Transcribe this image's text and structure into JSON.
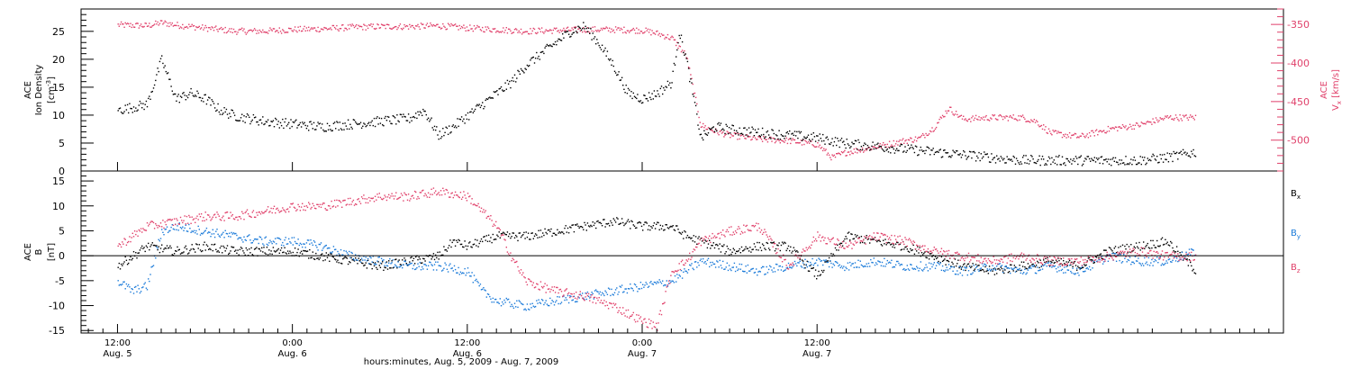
{
  "chart_data": [
    {
      "type": "scatter",
      "title": "",
      "xlabel": "hours:minutes, Aug.  5, 2009  -  Aug.  7, 2009",
      "ylabel": "ACE Ion Density [cm^-3]",
      "ylabel_parts": [
        "ACE",
        "Ion Density",
        "[cm",
        "-3",
        "]"
      ],
      "y2label": "ACE V_x [km/s]",
      "y2label_parts": [
        "ACE",
        "V",
        "x",
        "[km/s]"
      ],
      "ylim": [
        0,
        29
      ],
      "y2lim": [
        -540,
        -330
      ],
      "yticks": [
        0,
        5,
        10,
        15,
        20,
        25
      ],
      "y2ticks": [
        -350,
        -400,
        -450,
        -500
      ],
      "grid": false,
      "series": [
        {
          "axis": "left",
          "color": "#000000",
          "points": [
            [
              0,
              11
            ],
            [
              2,
              12
            ],
            [
              3,
              20
            ],
            [
              4,
              13
            ],
            [
              5,
              14
            ],
            [
              6,
              13
            ],
            [
              7,
              11
            ],
            [
              8,
              10
            ],
            [
              10,
              9
            ],
            [
              12,
              8.5
            ],
            [
              14,
              8
            ],
            [
              16,
              8.5
            ],
            [
              18,
              9
            ],
            [
              20,
              9.5
            ],
            [
              21,
              11
            ],
            [
              22,
              6.5
            ],
            [
              23,
              8
            ],
            [
              24,
              10
            ],
            [
              25,
              12
            ],
            [
              26,
              14
            ],
            [
              27,
              16
            ],
            [
              28,
              19
            ],
            [
              29,
              21
            ],
            [
              30,
              23
            ],
            [
              31,
              25
            ],
            [
              32,
              26
            ],
            [
              33,
              23
            ],
            [
              34,
              19
            ],
            [
              35,
              14
            ],
            [
              36,
              13
            ],
            [
              37,
              14
            ],
            [
              38,
              16
            ],
            [
              38.5,
              25
            ],
            [
              39,
              20
            ],
            [
              40,
              6
            ],
            [
              41,
              8
            ],
            [
              42,
              7.5
            ],
            [
              44,
              7
            ],
            [
              46,
              6.5
            ],
            [
              48,
              6
            ],
            [
              50,
              5
            ],
            [
              52,
              4.5
            ],
            [
              54,
              4
            ],
            [
              56,
              3.5
            ],
            [
              58,
              3
            ],
            [
              60,
              2.5
            ],
            [
              62,
              2
            ],
            [
              64,
              2
            ],
            [
              66,
              2
            ],
            [
              68,
              2
            ],
            [
              70,
              2
            ],
            [
              72,
              2.5
            ],
            [
              74,
              3.5
            ]
          ]
        },
        {
          "axis": "right",
          "color": "#e0406a",
          "points": [
            [
              0,
              -350
            ],
            [
              2,
              -351
            ],
            [
              3,
              -347
            ],
            [
              4,
              -350
            ],
            [
              5,
              -352
            ],
            [
              6,
              -354
            ],
            [
              8,
              -358
            ],
            [
              10,
              -358
            ],
            [
              12,
              -356
            ],
            [
              14,
              -355
            ],
            [
              16,
              -353
            ],
            [
              18,
              -352
            ],
            [
              20,
              -352
            ],
            [
              22,
              -351
            ],
            [
              24,
              -354
            ],
            [
              26,
              -356
            ],
            [
              28,
              -358
            ],
            [
              30,
              -357
            ],
            [
              32,
              -356
            ],
            [
              34,
              -356
            ],
            [
              36,
              -357
            ],
            [
              37,
              -361
            ],
            [
              38,
              -367
            ],
            [
              39,
              -390
            ],
            [
              40,
              -480
            ],
            [
              41,
              -488
            ],
            [
              42,
              -493
            ],
            [
              44,
              -498
            ],
            [
              46,
              -500
            ],
            [
              48,
              -505
            ],
            [
              49,
              -522
            ],
            [
              50,
              -515
            ],
            [
              52,
              -508
            ],
            [
              54,
              -500
            ],
            [
              55,
              -497
            ],
            [
              56,
              -483
            ],
            [
              57,
              -458
            ],
            [
              58,
              -472
            ],
            [
              60,
              -470
            ],
            [
              62,
              -470
            ],
            [
              63,
              -475
            ],
            [
              64,
              -490
            ],
            [
              66,
              -495
            ],
            [
              68,
              -485
            ],
            [
              70,
              -480
            ],
            [
              72,
              -470
            ],
            [
              74,
              -470
            ]
          ]
        }
      ],
      "legend": []
    },
    {
      "type": "scatter",
      "title": "",
      "xlabel": "hours:minutes, Aug.  5, 2009  -  Aug.  7, 2009",
      "ylabel": "ACE B [nT]",
      "ylabel_parts": [
        "ACE",
        "B",
        "[nT]"
      ],
      "ylim": [
        -15.5,
        17
      ],
      "yticks": [
        -15,
        -10,
        -5,
        0,
        5,
        10,
        15
      ],
      "zero_line": true,
      "grid": false,
      "series": [
        {
          "name": "B_x",
          "label_base": "B",
          "label_sub": "x",
          "color": "#000000",
          "points": [
            [
              0,
              -2
            ],
            [
              2,
              2
            ],
            [
              4,
              1
            ],
            [
              6,
              2
            ],
            [
              8,
              1
            ],
            [
              10,
              1
            ],
            [
              12,
              1
            ],
            [
              14,
              0
            ],
            [
              16,
              -1
            ],
            [
              18,
              -2
            ],
            [
              20,
              -1
            ],
            [
              22,
              0
            ],
            [
              23,
              3
            ],
            [
              24,
              2
            ],
            [
              26,
              4
            ],
            [
              28,
              4
            ],
            [
              30,
              5
            ],
            [
              32,
              6
            ],
            [
              34,
              7
            ],
            [
              36,
              6
            ],
            [
              38,
              6
            ],
            [
              39,
              4
            ],
            [
              40,
              3
            ],
            [
              42,
              1
            ],
            [
              44,
              2
            ],
            [
              46,
              2
            ],
            [
              48,
              -4
            ],
            [
              50,
              4
            ],
            [
              52,
              3
            ],
            [
              54,
              2
            ],
            [
              56,
              0
            ],
            [
              58,
              -2
            ],
            [
              60,
              -3
            ],
            [
              62,
              -2
            ],
            [
              64,
              -1
            ],
            [
              66,
              -2
            ],
            [
              68,
              1
            ],
            [
              70,
              2
            ],
            [
              72,
              3
            ],
            [
              74,
              -3
            ]
          ]
        },
        {
          "name": "B_y",
          "label_base": "B",
          "label_sub": "y",
          "color": "#1a7ad9",
          "points": [
            [
              0,
              -5
            ],
            [
              1,
              -7
            ],
            [
              2,
              -6
            ],
            [
              3,
              5
            ],
            [
              4,
              6
            ],
            [
              6,
              5
            ],
            [
              8,
              4
            ],
            [
              10,
              3
            ],
            [
              12,
              3
            ],
            [
              14,
              2
            ],
            [
              16,
              0
            ],
            [
              18,
              -1
            ],
            [
              20,
              -2
            ],
            [
              22,
              -2
            ],
            [
              24,
              -3
            ],
            [
              25,
              -7
            ],
            [
              26,
              -9
            ],
            [
              28,
              -10
            ],
            [
              30,
              -9
            ],
            [
              32,
              -8
            ],
            [
              34,
              -7
            ],
            [
              36,
              -6
            ],
            [
              38,
              -5
            ],
            [
              39,
              -3
            ],
            [
              40,
              -1
            ],
            [
              42,
              -2
            ],
            [
              44,
              -3
            ],
            [
              46,
              -2
            ],
            [
              48,
              -1
            ],
            [
              50,
              -2
            ],
            [
              52,
              -1
            ],
            [
              54,
              -2
            ],
            [
              56,
              -2
            ],
            [
              58,
              -3
            ],
            [
              60,
              -2
            ],
            [
              62,
              -3
            ],
            [
              64,
              -2
            ],
            [
              66,
              -3
            ],
            [
              68,
              0
            ],
            [
              70,
              -1
            ],
            [
              72,
              -1
            ],
            [
              74,
              1
            ]
          ]
        },
        {
          "name": "B_z",
          "label_base": "B",
          "label_sub": "z",
          "color": "#e0406a",
          "points": [
            [
              0,
              2
            ],
            [
              2,
              6
            ],
            [
              4,
              7
            ],
            [
              6,
              8
            ],
            [
              8,
              8
            ],
            [
              10,
              9
            ],
            [
              12,
              10
            ],
            [
              14,
              10
            ],
            [
              16,
              11
            ],
            [
              18,
              12
            ],
            [
              20,
              12
            ],
            [
              22,
              13
            ],
            [
              24,
              12
            ],
            [
              26,
              6
            ],
            [
              27,
              0
            ],
            [
              28,
              -5
            ],
            [
              30,
              -7
            ],
            [
              32,
              -8
            ],
            [
              34,
              -10
            ],
            [
              36,
              -13
            ],
            [
              37,
              -14
            ],
            [
              38,
              -3
            ],
            [
              39,
              -1
            ],
            [
              40,
              3
            ],
            [
              42,
              5
            ],
            [
              44,
              6
            ],
            [
              46,
              -2
            ],
            [
              48,
              4
            ],
            [
              50,
              2
            ],
            [
              52,
              4
            ],
            [
              54,
              3
            ],
            [
              56,
              1
            ],
            [
              58,
              0
            ],
            [
              60,
              -1
            ],
            [
              62,
              0
            ],
            [
              64,
              -1
            ],
            [
              66,
              -1
            ],
            [
              68,
              0
            ],
            [
              70,
              1
            ],
            [
              72,
              0
            ],
            [
              74,
              0
            ]
          ]
        }
      ],
      "legend": [
        "B_x",
        "B_y",
        "B_z"
      ]
    }
  ],
  "x_axis": {
    "range_hours": [
      -2.5,
      80
    ],
    "ticks": [
      {
        "hour": 0,
        "line1": "12:00",
        "line2": "Aug. 5"
      },
      {
        "hour": 12,
        "line1": "0:00",
        "line2": "Aug. 6"
      },
      {
        "hour": 24,
        "line1": "12:00",
        "line2": "Aug. 6"
      },
      {
        "hour": 36,
        "line1": "0:00",
        "line2": "Aug. 7"
      },
      {
        "hour": 48,
        "line1": "12:00",
        "line2": "Aug. 7"
      }
    ]
  }
}
